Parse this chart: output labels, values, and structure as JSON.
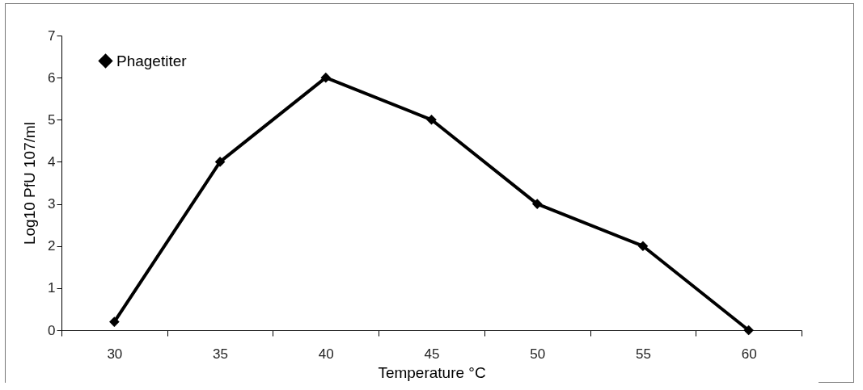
{
  "chart_data": {
    "type": "line",
    "xlabel": "Temperature °C",
    "ylabel": "Log10 PfU 107/ml",
    "categories": [
      "30",
      "35",
      "40",
      "45",
      "50",
      "55",
      "60"
    ],
    "series": [
      {
        "name": "Phagetiter",
        "color": "#000000",
        "values": [
          0.2,
          4,
          6,
          5,
          3,
          2,
          0
        ]
      }
    ],
    "ylim": [
      0,
      7
    ],
    "yticks": [
      0,
      1,
      2,
      3,
      4,
      5,
      6,
      7
    ],
    "grid": false,
    "legend": "top left",
    "marker": "diamond",
    "line_style": "solid"
  }
}
